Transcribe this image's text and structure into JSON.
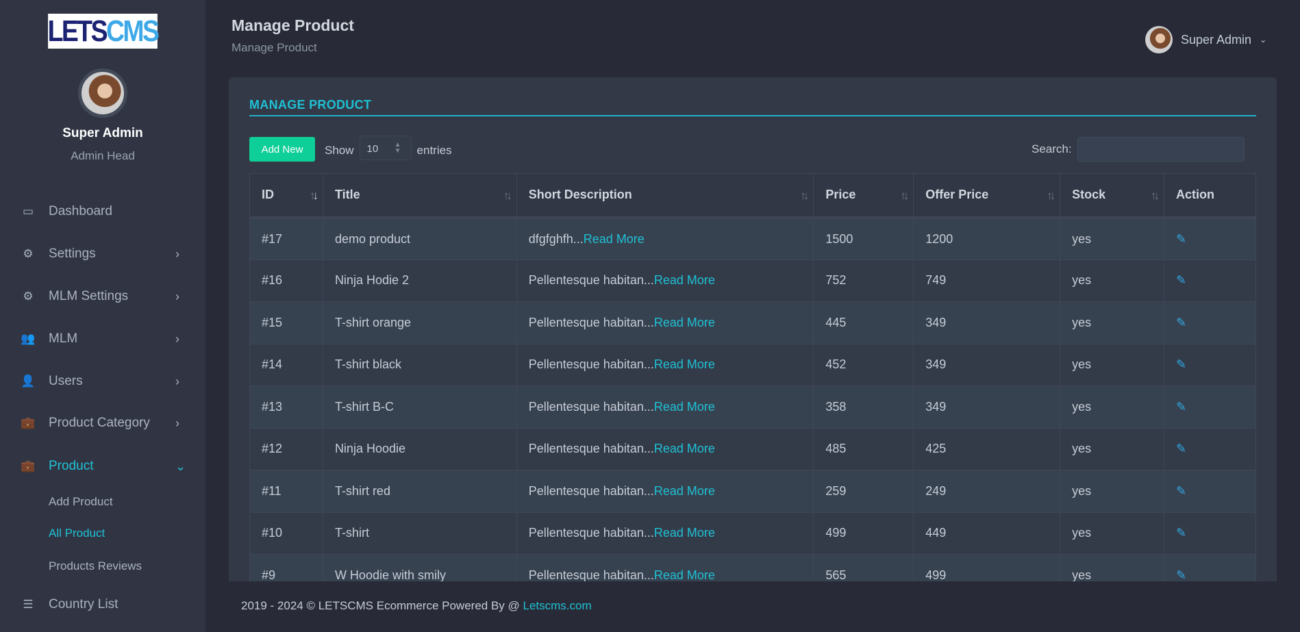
{
  "logo": {
    "part1": "LETS",
    "part2": "CMS"
  },
  "profile": {
    "name": "Super Admin",
    "role": "Admin Head"
  },
  "sidebar": {
    "items": [
      {
        "label": "Dashboard",
        "icon": "monitor-icon"
      },
      {
        "label": "Settings",
        "icon": "gear-icon",
        "chevron": "›"
      },
      {
        "label": "MLM Settings",
        "icon": "gear-icon",
        "chevron": "›"
      },
      {
        "label": "MLM",
        "icon": "group-icon",
        "chevron": "›"
      },
      {
        "label": "Users",
        "icon": "users-icon",
        "chevron": "›"
      },
      {
        "label": "Product Category",
        "icon": "briefcase-icon",
        "chevron": "›"
      },
      {
        "label": "Product",
        "icon": "briefcase-icon",
        "chevron": "⌄",
        "active": true
      },
      {
        "label": "Country List",
        "icon": "list-icon"
      }
    ],
    "sub_items": [
      "Add Product",
      "All Product",
      "Products Reviews"
    ],
    "active_sub": "All Product"
  },
  "header": {
    "title": "Manage Product",
    "breadcrumb": "Manage Product",
    "user": "Super Admin"
  },
  "card": {
    "title": "MANAGE PRODUCT",
    "add_label": "Add New",
    "show_label": "Show",
    "entries_value": "10",
    "entries_label": "entries",
    "search_label": "Search:",
    "search_value": ""
  },
  "table": {
    "columns": [
      "ID",
      "Title",
      "Short Description",
      "Price",
      "Offer Price",
      "Stock",
      "Action"
    ],
    "read_more": "Read More",
    "rows": [
      [
        "#17",
        "demo product",
        "dfgfghfh...",
        "1500",
        "1200",
        "yes"
      ],
      [
        "#16",
        "Ninja Hodie 2",
        "Pellentesque habitan...",
        "752",
        "749",
        "yes"
      ],
      [
        "#15",
        "T-shirt orange",
        "Pellentesque habitan...",
        "445",
        "349",
        "yes"
      ],
      [
        "#14",
        "T-shirt black",
        "Pellentesque habitan...",
        "452",
        "349",
        "yes"
      ],
      [
        "#13",
        "T-shirt B-C",
        "Pellentesque habitan...",
        "358",
        "349",
        "yes"
      ],
      [
        "#12",
        "Ninja Hoodie",
        "Pellentesque habitan...",
        "485",
        "425",
        "yes"
      ],
      [
        "#11",
        "T-shirt red",
        "Pellentesque habitan...",
        "259",
        "249",
        "yes"
      ],
      [
        "#10",
        "T-shirt",
        "Pellentesque habitan...",
        "499",
        "449",
        "yes"
      ],
      [
        "#9",
        "W Hoodie with smily",
        "Pellentesque habitan...",
        "565",
        "499",
        "yes"
      ]
    ]
  },
  "footer": {
    "text": "2019 - 2024 © LETSCMS Ecommerce Powered By @ ",
    "link": "Letscms.com"
  },
  "colors": {
    "accent": "#1fc0d4",
    "add_button": "#0ecf97",
    "sidebar": "#313543"
  }
}
